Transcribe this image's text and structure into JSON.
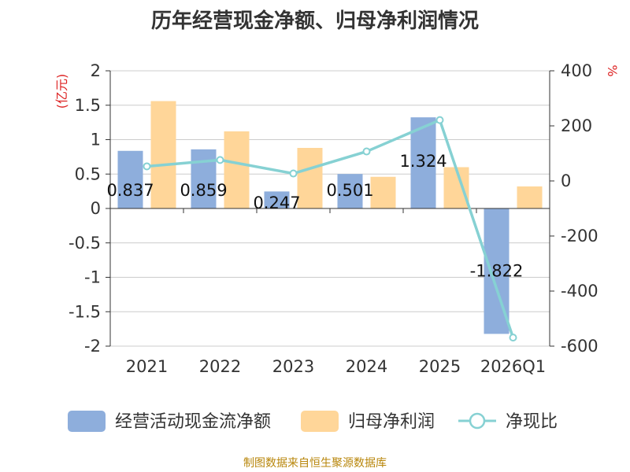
{
  "title": "历年经营现金净额、归母净利润情况",
  "source_note": "制图数据来自恒生聚源数据库",
  "chart_data": {
    "type": "bar",
    "categories": [
      "2021",
      "2022",
      "2023",
      "2024",
      "2025",
      "2026Q1"
    ],
    "left_axis": {
      "unit": "(亿元)",
      "ylim": [
        -2,
        2
      ],
      "ticks": [
        "2",
        "1.5",
        "1",
        "0.5",
        "0",
        "-0.5",
        "-1",
        "-1.5",
        "-2"
      ]
    },
    "right_axis": {
      "unit": "%",
      "ylim": [
        -600,
        400
      ],
      "ticks": [
        "400",
        "200",
        "0",
        "-200",
        "-400",
        "-600"
      ]
    },
    "grid": true,
    "legend_position": "bottom",
    "series": [
      {
        "name": "经营活动现金流净额",
        "type": "bar",
        "axis": "left",
        "color": "#8eaedc",
        "values": [
          0.837,
          0.859,
          0.247,
          0.501,
          1.324,
          -1.822
        ],
        "labels": [
          "0.837",
          "0.859",
          "0.247",
          "0.501",
          "1.324",
          "-1.822"
        ]
      },
      {
        "name": "归母净利润",
        "type": "bar",
        "axis": "left",
        "color": "#ffd699",
        "values": [
          1.56,
          1.12,
          0.88,
          0.46,
          0.6,
          0.32
        ]
      },
      {
        "name": "净现比",
        "type": "line",
        "axis": "right",
        "color": "#86d1d3",
        "values": [
          53,
          76,
          27,
          107,
          221,
          -569
        ]
      }
    ]
  }
}
